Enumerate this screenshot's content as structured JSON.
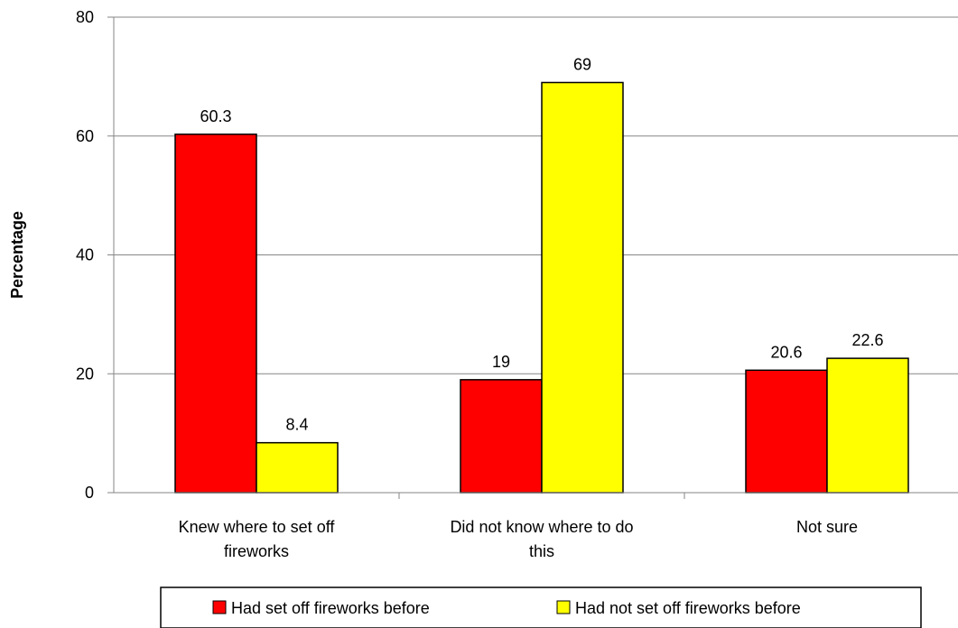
{
  "chart_data": {
    "type": "bar",
    "ylabel": "Percentage",
    "xlabel": "",
    "ylim": [
      0,
      80
    ],
    "yticks": [
      0,
      20,
      40,
      60,
      80
    ],
    "categories": [
      [
        "Knew where to set off",
        "fireworks"
      ],
      [
        "Did not know where to do",
        "this"
      ],
      [
        "Not sure"
      ]
    ],
    "series": [
      {
        "name": "Had set off fireworks before",
        "color": "#ff0000",
        "values": [
          60.3,
          19,
          20.6
        ]
      },
      {
        "name": "Had not set off fireworks before",
        "color": "#ffff00",
        "values": [
          8.4,
          69,
          22.6
        ]
      }
    ],
    "data_labels": [
      [
        "60.3",
        "19",
        "20.6"
      ],
      [
        "8.4",
        "69",
        "22.6"
      ]
    ],
    "gridlines": true,
    "legend_position": "bottom"
  }
}
